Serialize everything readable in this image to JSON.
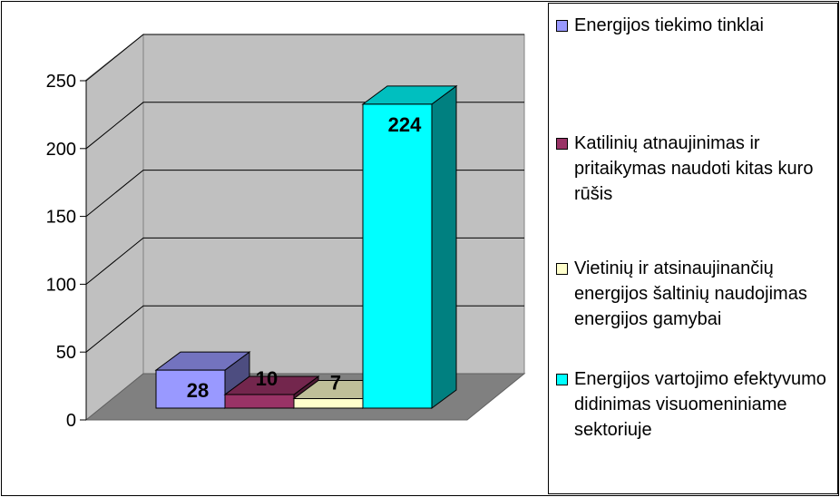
{
  "chart_data": {
    "type": "bar",
    "ylim": [
      0,
      250
    ],
    "yticks": [
      0,
      50,
      100,
      150,
      200,
      250
    ],
    "grid": true,
    "legend": "right",
    "series": [
      {
        "name": "Energijos tiekimo tinklai",
        "color": "#9999ff",
        "values": [
          28
        ]
      },
      {
        "name": "Katilinių atnaujinimas ir pritaikymas naudoti kitas kuro rūšis",
        "color": "#993366",
        "values": [
          10
        ]
      },
      {
        "name": "Vietinių ir atsinaujinančių energijos šaltinių naudojimas energijos gamybai",
        "color": "#ffffcc",
        "values": [
          7
        ]
      },
      {
        "name": "Energijos vartojimo efektyvumo didinimas visuomeniniame sektoriuje",
        "color": "#00ffff",
        "values": [
          224
        ]
      }
    ]
  }
}
